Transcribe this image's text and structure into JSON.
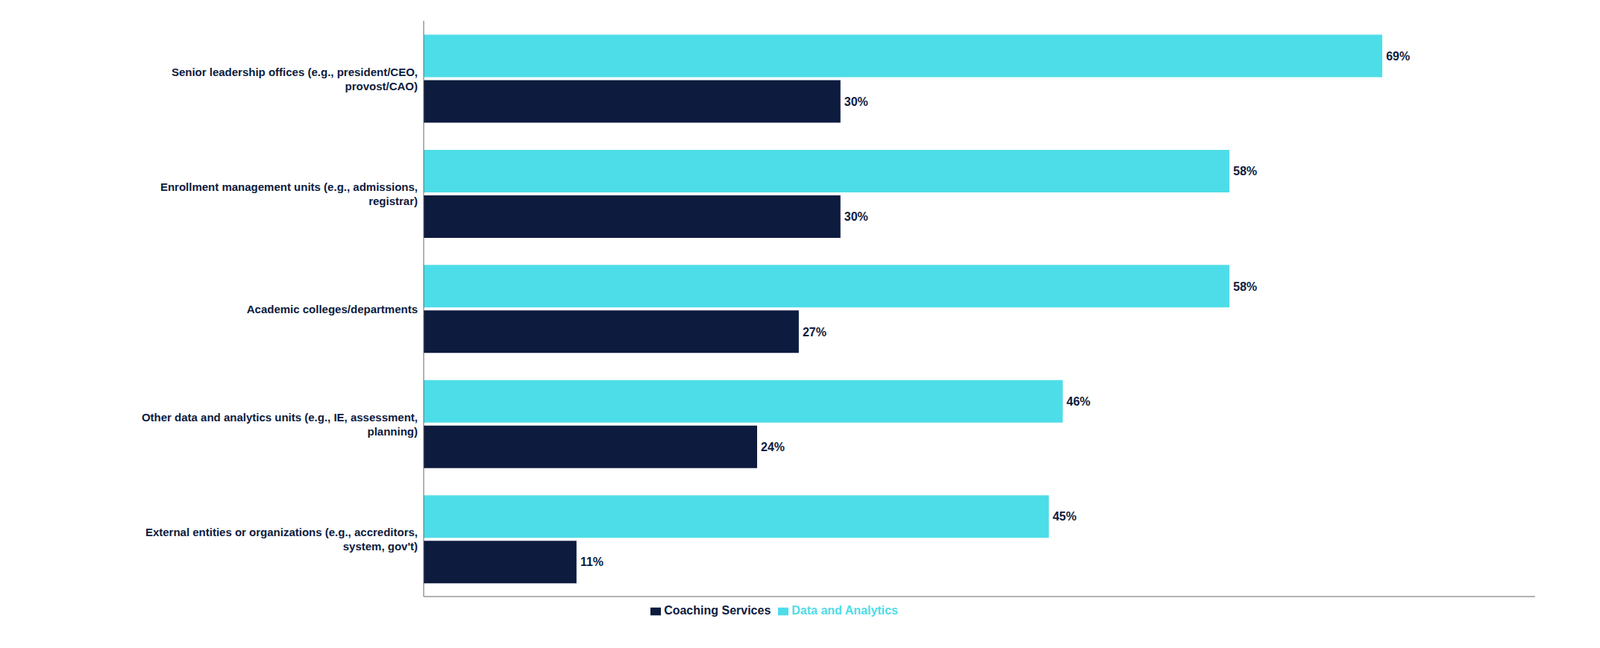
{
  "chart_data": {
    "type": "bar",
    "orientation": "horizontal",
    "categories": [
      "Senior leadership offices (e.g., president/CEO,\nprovost/CAO)",
      "Enrollment management units (e.g., admissions,\nregistrar)",
      "Academic colleges/departments",
      "Other data and analytics units (e.g., IE, assessment,\nplanning)",
      "External entities or organizations (e.g., accreditors,\nsystem, gov't)"
    ],
    "series": [
      {
        "name": "Data and Analytics",
        "color": "#4DDDE8",
        "values": [
          69,
          58,
          58,
          46,
          45
        ],
        "value_labels": [
          "69%",
          "58%",
          "58%",
          "46%",
          "45%"
        ]
      },
      {
        "name": "Coaching Services",
        "color": "#0D1B3E",
        "values": [
          30,
          30,
          27,
          24,
          11
        ],
        "value_labels": [
          "30%",
          "30%",
          "27%",
          "24%",
          "11%"
        ]
      }
    ],
    "xlim": [
      0,
      80
    ],
    "data_labels": true,
    "tick_labels": "y",
    "grid": false,
    "legend": "bottom"
  }
}
